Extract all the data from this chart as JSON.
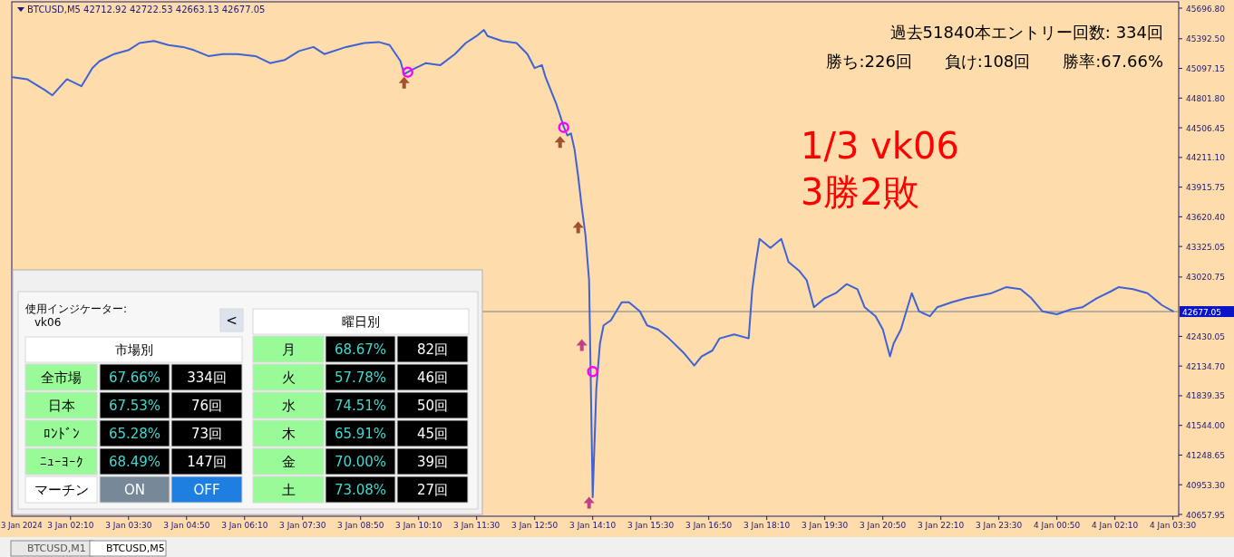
{
  "chart_data": [
    {
      "type": "line",
      "xlim": [
        "2024-01-03T00:49",
        "2024-01-04T03:38"
      ],
      "ylim": [
        40640,
        45760
      ],
      "xticks": [
        {
          "value": "2024-01-03T02:10",
          "label": "3 Jan 02:10"
        },
        {
          "value": "2024-01-03T03:30",
          "label": "3 Jan 03:30"
        },
        {
          "value": "2024-01-03T04:50",
          "label": "3 Jan 04:50"
        },
        {
          "value": "2024-01-03T06:10",
          "label": "3 Jan 06:10"
        },
        {
          "value": "2024-01-03T07:30",
          "label": "3 Jan 07:30"
        },
        {
          "value": "2024-01-03T08:50",
          "label": "3 Jan 08:50"
        },
        {
          "value": "2024-01-03T10:10",
          "label": "3 Jan 10:10"
        },
        {
          "value": "2024-01-03T11:30",
          "label": "3 Jan 11:30"
        },
        {
          "value": "2024-01-03T12:50",
          "label": "3 Jan 12:50"
        },
        {
          "value": "2024-01-03T14:10",
          "label": "3 Jan 14:10"
        },
        {
          "value": "2024-01-03T15:30",
          "label": "3 Jan 15:30"
        },
        {
          "value": "2024-01-03T16:50",
          "label": "3 Jan 16:50"
        },
        {
          "value": "2024-01-03T18:10",
          "label": "3 Jan 18:10"
        },
        {
          "value": "2024-01-03T19:30",
          "label": "3 Jan 19:30"
        },
        {
          "value": "2024-01-03T20:50",
          "label": "3 Jan 20:50"
        },
        {
          "value": "2024-01-03T22:10",
          "label": "3 Jan 22:10"
        },
        {
          "value": "2024-01-03T23:30",
          "label": "3 Jan 23:30"
        },
        {
          "value": "2024-01-04T00:50",
          "label": "4 Jan 00:50"
        },
        {
          "value": "2024-01-04T02:10",
          "label": "4 Jan 02:10"
        },
        {
          "value": "2024-01-04T03:30",
          "label": "4 Jan 03:30"
        }
      ],
      "yticks": [
        {
          "value": 45696.8,
          "label": "45696.80"
        },
        {
          "value": 45392.5,
          "label": "45392.50"
        },
        {
          "value": 45097.15,
          "label": "45097.15"
        },
        {
          "value": 44801.8,
          "label": "44801.80"
        },
        {
          "value": 44506.45,
          "label": "44506.45"
        },
        {
          "value": 44211.1,
          "label": "44211.10"
        },
        {
          "value": 43915.75,
          "label": "43915.75"
        },
        {
          "value": 43620.4,
          "label": "43620.40"
        },
        {
          "value": 43325.05,
          "label": "43325.05"
        },
        {
          "value": 43020.75,
          "label": "43020.75"
        },
        {
          "value": 42430.05,
          "label": "42430.05"
        },
        {
          "value": 42134.7,
          "label": "42134.70"
        },
        {
          "value": 41839.35,
          "label": "41839.35"
        },
        {
          "value": 41544,
          "label": "41544.00"
        },
        {
          "value": 41248.65,
          "label": "41248.65"
        },
        {
          "value": 40953.3,
          "label": "40953.30"
        },
        {
          "value": 40657.95,
          "label": "40657.95"
        }
      ],
      "series": [
        {
          "type": "line",
          "color": "#3f62d6",
          "x": [
            "2024-01-03T00:50",
            "2024-01-03T01:10",
            "2024-01-03T01:35",
            "2024-01-03T01:45",
            "2024-01-03T02:05",
            "2024-01-03T02:25",
            "2024-01-03T02:40",
            "2024-01-03T02:50",
            "2024-01-03T03:10",
            "2024-01-03T03:30",
            "2024-01-03T03:45",
            "2024-01-03T04:05",
            "2024-01-03T04:25",
            "2024-01-03T04:45",
            "2024-01-03T05:00",
            "2024-01-03T05:20",
            "2024-01-03T05:40",
            "2024-01-03T06:00",
            "2024-01-03T06:25",
            "2024-01-03T06:45",
            "2024-01-03T07:05",
            "2024-01-03T07:25",
            "2024-01-03T07:45",
            "2024-01-03T08:00",
            "2024-01-03T08:30",
            "2024-01-03T08:55",
            "2024-01-03T09:15",
            "2024-01-03T09:30",
            "2024-01-03T09:45",
            "2024-01-03T09:50",
            "2024-01-03T10:00",
            "2024-01-03T10:20",
            "2024-01-03T10:40",
            "2024-01-03T11:00",
            "2024-01-03T11:15",
            "2024-01-03T11:30",
            "2024-01-03T11:40",
            "2024-01-03T11:45",
            "2024-01-03T12:05",
            "2024-01-03T12:25",
            "2024-01-03T12:40",
            "2024-01-03T12:50",
            "2024-01-03T13:00",
            "2024-01-03T13:05",
            "2024-01-03T13:15",
            "2024-01-03T13:20",
            "2024-01-03T13:30",
            "2024-01-03T13:35",
            "2024-01-03T13:40",
            "2024-01-03T13:45",
            "2024-01-03T13:50",
            "2024-01-03T13:55",
            "2024-01-03T14:00",
            "2024-01-03T14:05",
            "2024-01-03T14:10",
            "2024-01-03T14:15",
            "2024-01-03T14:20",
            "2024-01-03T14:25",
            "2024-01-03T14:35",
            "2024-01-03T14:50",
            "2024-01-03T15:00",
            "2024-01-03T15:15",
            "2024-01-03T15:25",
            "2024-01-03T15:40",
            "2024-01-03T15:55",
            "2024-01-03T16:15",
            "2024-01-03T16:30",
            "2024-01-03T16:40",
            "2024-01-03T16:55",
            "2024-01-03T17:05",
            "2024-01-03T17:25",
            "2024-01-03T17:45",
            "2024-01-03T17:50",
            "2024-01-03T17:55",
            "2024-01-03T18:00",
            "2024-01-03T18:15",
            "2024-01-03T18:30",
            "2024-01-03T18:40",
            "2024-01-03T18:55",
            "2024-01-03T19:05",
            "2024-01-03T19:15",
            "2024-01-03T19:30",
            "2024-01-03T19:45",
            "2024-01-03T20:00",
            "2024-01-03T20:15",
            "2024-01-03T20:25",
            "2024-01-03T20:40",
            "2024-01-03T20:50",
            "2024-01-03T21:00",
            "2024-01-03T21:05",
            "2024-01-03T21:15",
            "2024-01-03T21:30",
            "2024-01-03T21:40",
            "2024-01-03T21:55",
            "2024-01-03T22:05",
            "2024-01-03T22:25",
            "2024-01-03T22:45",
            "2024-01-03T23:00",
            "2024-01-03T23:20",
            "2024-01-03T23:40",
            "2024-01-04T00:00",
            "2024-01-04T00:15",
            "2024-01-04T00:30",
            "2024-01-04T00:50",
            "2024-01-04T01:10",
            "2024-01-04T01:25",
            "2024-01-04T01:45",
            "2024-01-04T02:05",
            "2024-01-04T02:15",
            "2024-01-04T02:35",
            "2024-01-04T02:55",
            "2024-01-04T03:15",
            "2024-01-04T03:30"
          ],
          "values": [
            45010,
            44990,
            44880,
            44830,
            44990,
            44920,
            45100,
            45170,
            45240,
            45280,
            45350,
            45370,
            45330,
            45310,
            45280,
            45220,
            45240,
            45240,
            45220,
            45150,
            45180,
            45270,
            45310,
            45240,
            45310,
            45350,
            45360,
            45330,
            45170,
            45040,
            45080,
            45150,
            45130,
            45240,
            45350,
            45420,
            45480,
            45420,
            45370,
            45350,
            45240,
            45100,
            45130,
            45010,
            44830,
            44740,
            44520,
            44430,
            44450,
            44290,
            44020,
            43710,
            43440,
            42990,
            40830,
            41910,
            42360,
            42540,
            42590,
            42770,
            42770,
            42680,
            42540,
            42500,
            42410,
            42270,
            42140,
            42230,
            42290,
            42410,
            42450,
            42410,
            42900,
            43170,
            43400,
            43310,
            43400,
            43170,
            43080,
            42990,
            42720,
            42810,
            42860,
            42950,
            42900,
            42720,
            42630,
            42500,
            42230,
            42360,
            42500,
            42860,
            42680,
            42630,
            42720,
            42770,
            42810,
            42830,
            42860,
            42920,
            42900,
            42810,
            42680,
            42650,
            42700,
            42720,
            42810,
            42880,
            42920,
            42900,
            42860,
            42740,
            42680
          ]
        },
        {
          "type": "scatter",
          "marker": "triangle",
          "colors": [
            "#a0522d",
            "#a0522d",
            "#a0522d",
            "#c0408a",
            "#c0408a"
          ],
          "x": [
            "2024-01-03T09:50",
            "2024-01-03T13:25",
            "2024-01-03T13:50",
            "2024-01-03T13:55",
            "2024-01-03T14:05"
          ],
          "values": [
            44950,
            44360,
            43510,
            42340,
            40770
          ]
        },
        {
          "type": "scatter",
          "marker": "circle",
          "color": "#ff00ff",
          "x": [
            "2024-01-03T09:55",
            "2024-01-03T13:30",
            "2024-01-03T14:10"
          ],
          "values": [
            45060,
            44510,
            42080
          ]
        }
      ],
      "ref_lines": [
        {
          "axis": "y",
          "value": 42677.05,
          "label": "42677.05",
          "color": "#708090"
        }
      ],
      "annotations": [
        "BTCUSD,M5  42712.92 42722.53 42663.13 42677.05",
        "過去51840本エントリー回数: 334回",
        "勝ち:226回　　負け:108回　　勝率:67.66%",
        "1/3  vk06",
        "3勝2敗",
        "BTCUSD,M1",
        "BTCUSD,M5",
        "3 Jan 2024"
      ]
    },
    {
      "type": "other",
      "annotations": [
        "使用インジケーター:",
        "vk06",
        "<",
        "市場別",
        "曜日別",
        "全市場",
        "67.66%",
        "334回",
        "日本",
        "67.53%",
        "76回",
        "ﾛﾝﾄﾞﾝ",
        "65.28%",
        "73回",
        "ﾆｭｰﾖｰｸ",
        "68.49%",
        "147回",
        "マーチン",
        "ON",
        "OFF",
        "月",
        "68.67%",
        "82回",
        "火",
        "57.78%",
        "46回",
        "水",
        "74.51%",
        "50回",
        "木",
        "65.91%",
        "45回",
        "金",
        "70.00%",
        "39回",
        "土",
        "73.08%",
        "27回"
      ]
    }
  ]
}
